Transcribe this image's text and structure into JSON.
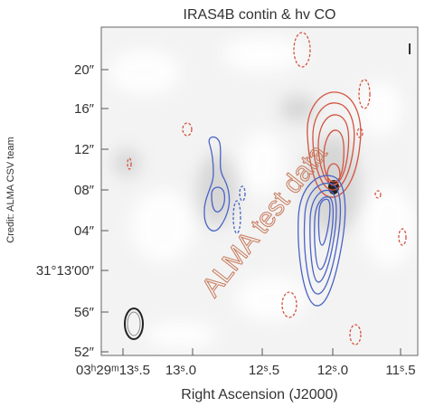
{
  "figure": {
    "title": "IRAS4B contin & hv CO",
    "credit": "Credit: ALMA CSV team",
    "watermark": "ALMA test data",
    "x_axis": {
      "label": "Right Ascension (J2000)",
      "ticks": [
        "03ʰ29ᵐ13ˢ.5",
        "13ˢ.0",
        "12ˢ.5",
        "12ˢ.0",
        "11ˢ.5"
      ]
    },
    "y_axis": {
      "ticks": [
        "20″",
        "16″",
        "12″",
        "08″",
        "04″",
        "31°13′00″",
        "56″",
        "52″"
      ]
    }
  }
}
